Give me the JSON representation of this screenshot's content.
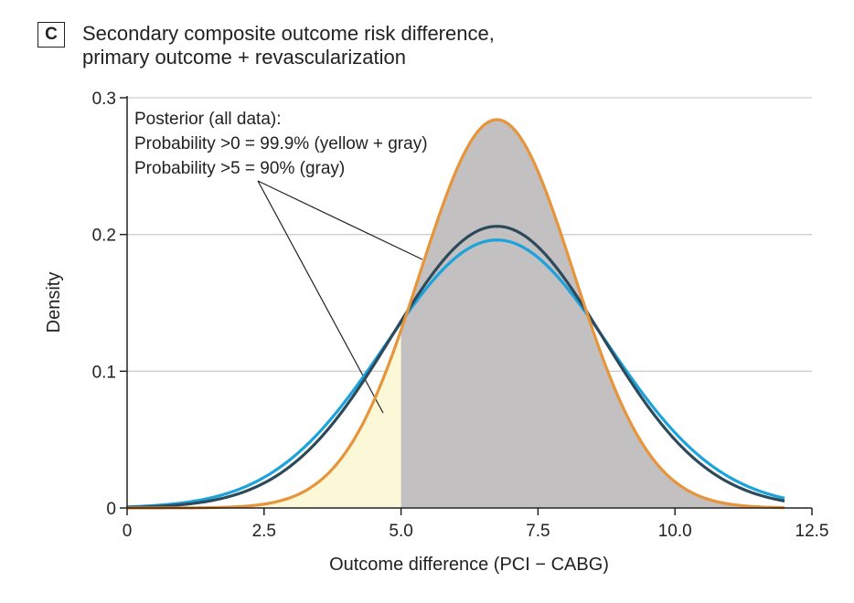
{
  "figure": {
    "panel_label": "C",
    "title_line1": "Secondary composite outcome risk difference,",
    "title_line2": "primary outcome + revascularization"
  },
  "chart_data": {
    "type": "line",
    "xlabel": "Outcome difference (PCI − CABG)",
    "ylabel": "Density",
    "xlim": [
      0,
      12.5
    ],
    "ylim": [
      0,
      0.3
    ],
    "x_ticks": [
      0,
      2.5,
      5.0,
      7.5,
      10.0,
      12.5
    ],
    "x_tick_labels": [
      "0",
      "2.5",
      "5.0",
      "7.5",
      "10.0",
      "12.5"
    ],
    "y_ticks": [
      0,
      0.1,
      0.2,
      0.3
    ],
    "y_tick_labels": [
      "0",
      "0.1",
      "0.2",
      "0.3"
    ],
    "grid": "horizontal",
    "curves_x_range": [
      0,
      12
    ],
    "series": [
      {
        "role": "posterior",
        "mean": 6.75,
        "sd": 1.4,
        "peak": 0.284,
        "color": "#E8943A"
      },
      {
        "role": "prior-dark",
        "mean": 6.75,
        "sd": 1.93,
        "peak": 0.206,
        "color": "#2E4A5A"
      },
      {
        "role": "prior-light",
        "mean": 6.75,
        "sd": 2.04,
        "peak": 0.196,
        "color": "#1BA3DC"
      }
    ],
    "shaded_regions": [
      {
        "from": 0,
        "to": 5,
        "color": "#FBF8D8"
      },
      {
        "from": 5,
        "to": 12,
        "color": "#C2C0C1"
      }
    ],
    "annotations": {
      "line1": "Posterior (all data):",
      "line2": "Probability >0 = 99.9% (yellow + gray)",
      "line3": "Probability >5 = 90% (gray)"
    }
  }
}
